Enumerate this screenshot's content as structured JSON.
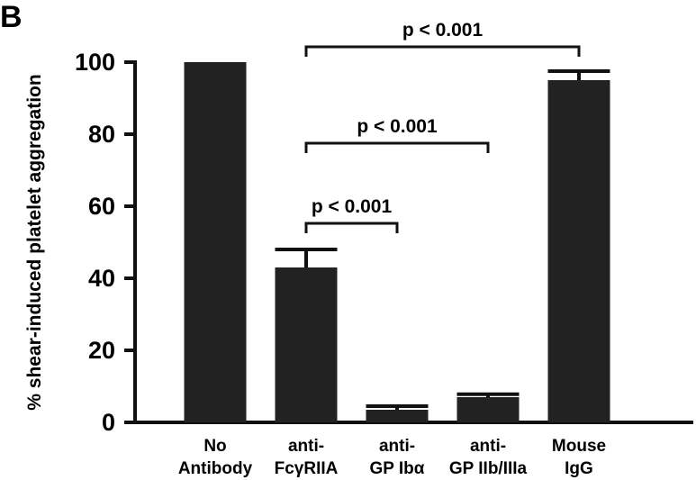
{
  "panel_label": "B",
  "chart_data": {
    "type": "bar",
    "title": "",
    "xlabel": "",
    "ylabel": "% shear-induced platelet aggregation",
    "ylim": [
      0,
      100
    ],
    "yticks": [
      0,
      20,
      40,
      60,
      80,
      100
    ],
    "grid": false,
    "categories": [
      [
        "No",
        "Antibody"
      ],
      [
        "anti-",
        "FcγRIIA"
      ],
      [
        "anti-",
        "GP Ibα"
      ],
      [
        "anti-",
        "GP IIb/IIIa"
      ],
      [
        "Mouse",
        "IgG"
      ]
    ],
    "values": [
      100,
      43,
      3.5,
      7,
      95
    ],
    "errors": [
      0,
      5,
      1,
      0.8,
      2.5
    ],
    "bar_color": "#222222",
    "annotations": [
      {
        "from": 1,
        "to": 4,
        "text": "p < 0.001"
      },
      {
        "from": 1,
        "to": 3,
        "text": "p < 0.001"
      },
      {
        "from": 1,
        "to": 2,
        "text": "p < 0.001"
      }
    ]
  }
}
